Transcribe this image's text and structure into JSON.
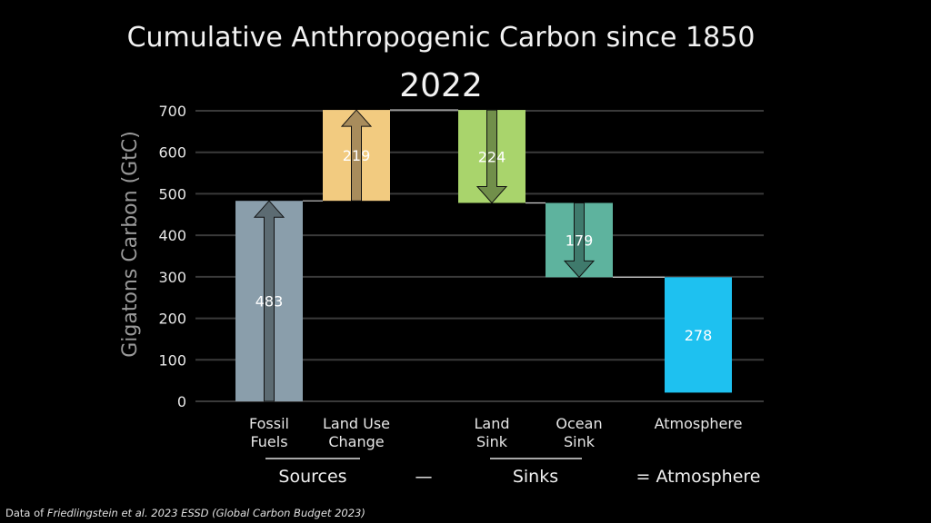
{
  "title": "Cumulative Anthropogenic Carbon since 1850",
  "subtitle": "2022",
  "credit": {
    "prefix": "Data of ",
    "citation": "Friedlingstein et al. 2023 ESSD (Global Carbon Budget 2023)"
  },
  "colors": {
    "background": "#000000",
    "grid": "#3a3a3a",
    "text": "#e6e6e6"
  },
  "chart_data": {
    "type": "bar",
    "subtype": "waterfall",
    "ylabel": "Gigatons Carbon (GtC)",
    "ylim": [
      0,
      700
    ],
    "yticks": [
      0,
      100,
      200,
      300,
      400,
      500,
      600,
      700
    ],
    "grid": true,
    "bars": [
      {
        "label": [
          "Fossil",
          "Fuels"
        ],
        "value": 483,
        "start": 0,
        "end": 483,
        "color": "#8a9eab",
        "arrow": "up",
        "arrow_color": "#5c6b72"
      },
      {
        "label": [
          "Land Use",
          "Change"
        ],
        "value": 219,
        "start": 483,
        "end": 702,
        "color": "#f2cb80",
        "arrow": "up",
        "arrow_color": "#a88c5c"
      },
      {
        "label": [
          "Land",
          "Sink"
        ],
        "value": 224,
        "start": 702,
        "end": 478,
        "color": "#a9d46c",
        "arrow": "down",
        "arrow_color": "#718f4a"
      },
      {
        "label": [
          "Ocean",
          "Sink"
        ],
        "value": 179,
        "start": 478,
        "end": 299,
        "color": "#5eb39e",
        "arrow": "down",
        "arrow_color": "#3f7a6c"
      },
      {
        "label": [
          "Atmosphere"
        ],
        "value": 278,
        "start": 299,
        "end": 21,
        "color": "#1ec1f0",
        "arrow": "none"
      }
    ],
    "equation": {
      "sources": "Sources",
      "minus": "—",
      "sinks": "Sinks",
      "equals": "= Atmosphere"
    }
  }
}
